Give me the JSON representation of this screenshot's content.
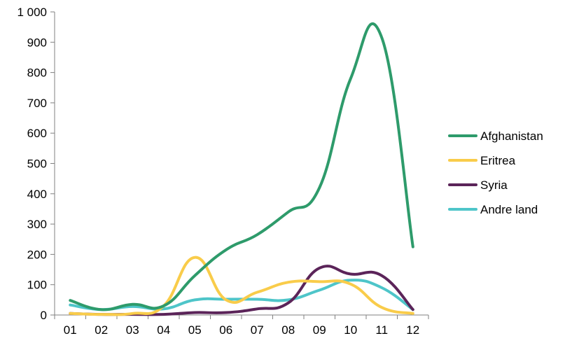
{
  "chart_data": {
    "type": "line",
    "title": "",
    "xlabel": "",
    "ylabel": "",
    "categories": [
      "01",
      "02",
      "03",
      "04",
      "05",
      "06",
      "07",
      "08",
      "09",
      "10",
      "11",
      "12"
    ],
    "y_ticks": [
      "0",
      "100",
      "200",
      "300",
      "400",
      "500",
      "600",
      "700",
      "800",
      "900",
      "1 000"
    ],
    "ylim": [
      0,
      1000
    ],
    "grid": false,
    "legend_position": "right",
    "series": [
      {
        "name": "Afghanistan",
        "color": "#2e9b6b",
        "values": [
          48,
          18,
          35,
          30,
          130,
          215,
          265,
          340,
          420,
          780,
          915,
          225
        ]
      },
      {
        "name": "Eritrea",
        "color": "#f9cc4a",
        "values": [
          5,
          2,
          5,
          30,
          190,
          50,
          75,
          108,
          110,
          102,
          25,
          5
        ]
      },
      {
        "name": "Syria",
        "color": "#5b2459",
        "values": [
          5,
          2,
          2,
          2,
          8,
          8,
          20,
          40,
          155,
          135,
          130,
          18
        ]
      },
      {
        "name": "Andre land",
        "color": "#4ec5c9",
        "values": [
          33,
          18,
          28,
          20,
          50,
          52,
          52,
          50,
          82,
          115,
          90,
          18
        ]
      }
    ]
  }
}
